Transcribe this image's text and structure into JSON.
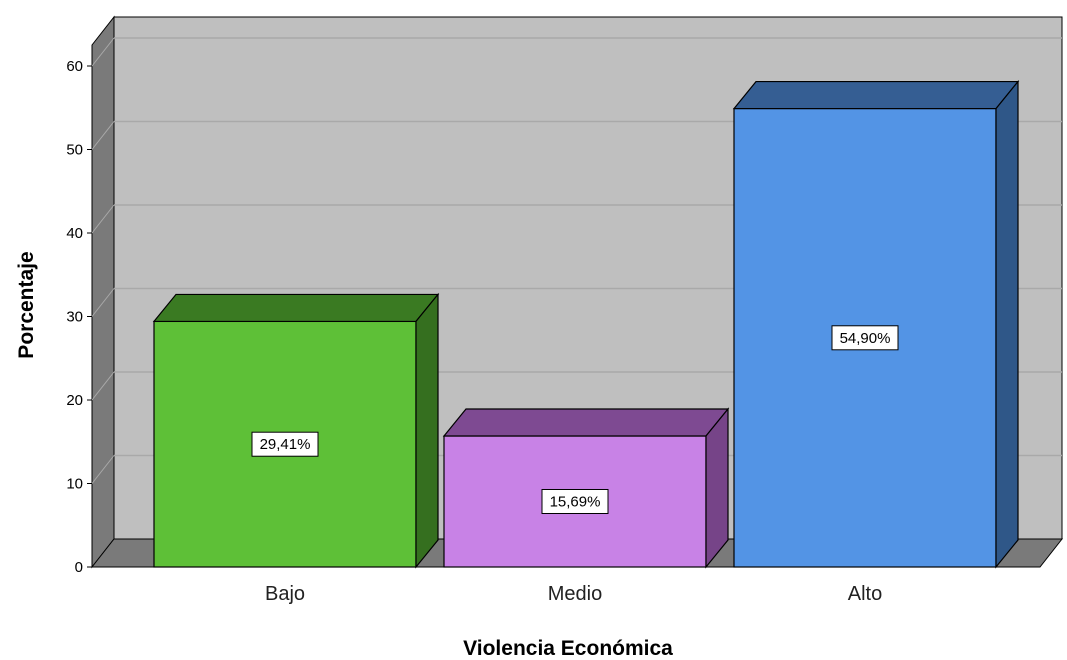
{
  "chart_data": {
    "type": "bar",
    "categories": [
      "Bajo",
      "Medio",
      "Alto"
    ],
    "values": [
      29.41,
      15.69,
      54.9
    ],
    "data_labels": [
      "29,41%",
      "15,69%",
      "54,90%"
    ],
    "xlabel": "Violencia Económica",
    "ylabel": "Porcentaje",
    "ylim": [
      0,
      65
    ],
    "yticks": [
      0,
      10,
      20,
      30,
      40,
      50,
      60
    ],
    "grid": true,
    "style": "3d",
    "colors": {
      "bars": [
        {
          "front": "#5ec037",
          "top": "#3a7a22",
          "side": "#356f1f"
        },
        {
          "front": "#c882e6",
          "top": "#7e4a92",
          "side": "#764488"
        },
        {
          "front": "#5394e5",
          "top": "#355e93",
          "side": "#2f5788"
        }
      ],
      "plot_background": "#bfbfbf",
      "left_wall": "#7a7a7a",
      "floor": "#7a7a7a",
      "gridline": "#a9a9a9"
    }
  }
}
